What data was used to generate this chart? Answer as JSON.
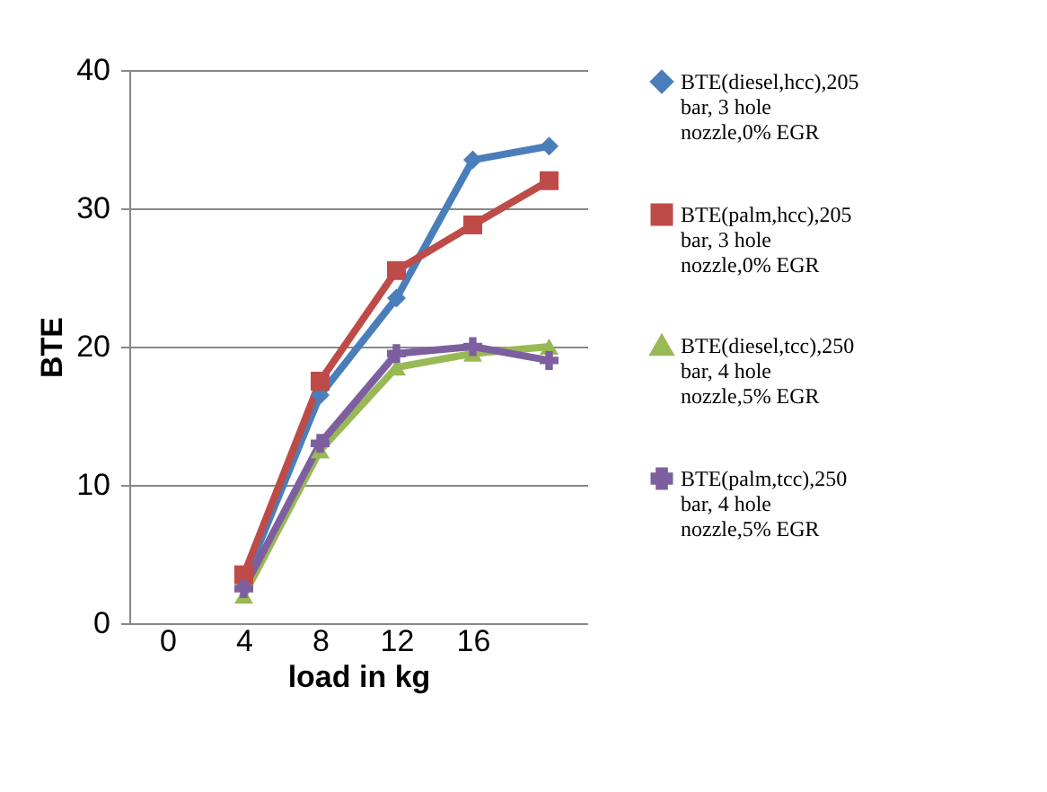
{
  "chart_data": {
    "type": "line",
    "xlabel": "load in kg",
    "ylabel": "BTE",
    "categories": [
      "0",
      "4",
      "8",
      "12",
      "16",
      null
    ],
    "series": [
      {
        "name": "BTE(diesel,hcc),205 bar, 3 hole nozzle,0% EGR",
        "color": "#4a7ebb",
        "marker": "diamond",
        "values": [
          null,
          3,
          16.5,
          23.5,
          33.5,
          34.5
        ]
      },
      {
        "name": "BTE(palm,hcc),205 bar, 3 hole nozzle,0% EGR",
        "color": "#be4b48",
        "marker": "square",
        "values": [
          null,
          3.5,
          17.5,
          25.5,
          28.8,
          32
        ]
      },
      {
        "name": "BTE(diesel,tcc),250 bar, 4 hole nozzle,5% EGR",
        "color": "#98b954",
        "marker": "triangle",
        "values": [
          null,
          2,
          12.5,
          18.5,
          19.5,
          20
        ]
      },
      {
        "name": "BTE(palm,tcc),250 bar, 4 hole nozzle,5% EGR",
        "color": "#7d5fa0",
        "marker": "cross",
        "values": [
          null,
          2.5,
          13,
          19.5,
          20,
          19
        ]
      }
    ],
    "ylim": [
      0,
      40
    ],
    "yticks": [
      0,
      10,
      20,
      30,
      40
    ],
    "grid": "y",
    "legend": "right",
    "line_style": "solid"
  }
}
